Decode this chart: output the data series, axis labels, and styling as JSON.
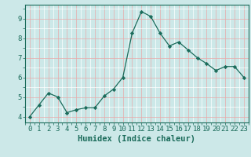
{
  "x": [
    0,
    1,
    2,
    3,
    4,
    5,
    6,
    7,
    8,
    9,
    10,
    11,
    12,
    13,
    14,
    15,
    16,
    17,
    18,
    19,
    20,
    21,
    22,
    23
  ],
  "y": [
    4.0,
    4.6,
    5.2,
    5.0,
    4.2,
    4.35,
    4.45,
    4.45,
    5.05,
    5.4,
    6.0,
    8.25,
    9.35,
    9.1,
    8.25,
    7.6,
    7.8,
    7.4,
    7.0,
    6.7,
    6.35,
    6.55,
    6.55,
    6.0
  ],
  "xlabel": "Humidex (Indice chaleur)",
  "ylim": [
    3.7,
    9.7
  ],
  "xlim": [
    -0.5,
    23.5
  ],
  "yticks": [
    4,
    5,
    6,
    7,
    8,
    9
  ],
  "xticks": [
    0,
    1,
    2,
    3,
    4,
    5,
    6,
    7,
    8,
    9,
    10,
    11,
    12,
    13,
    14,
    15,
    16,
    17,
    18,
    19,
    20,
    21,
    22,
    23
  ],
  "line_color": "#1a6b5a",
  "marker": "D",
  "marker_size": 2.2,
  "bg_color": "#cce8e8",
  "grid_color": "#ffffff",
  "grid_major_color": "#e8aaaa",
  "tick_color": "#1a6b5a",
  "label_color": "#1a6b5a",
  "xlabel_fontsize": 7.5,
  "tick_fontsize": 6.5
}
